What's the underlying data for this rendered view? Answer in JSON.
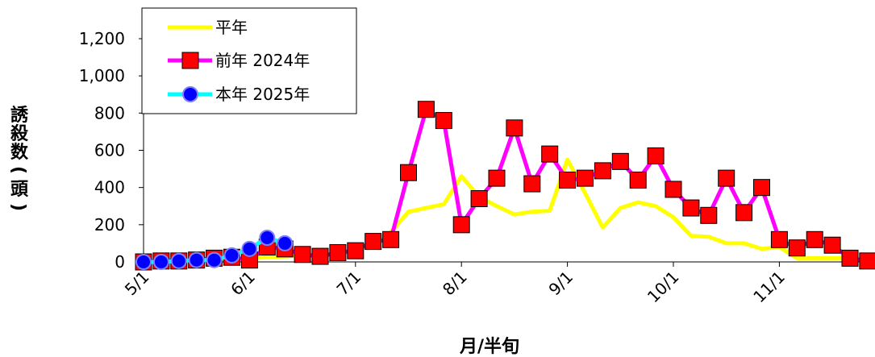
{
  "chart_data": {
    "type": "line",
    "xlabel": "月/半旬",
    "ylabel": "誘殺数(頭)",
    "ylim": [
      0,
      1200
    ],
    "yticks": [
      "0",
      "200",
      "400",
      "600",
      "800",
      "1,000",
      "1,200"
    ],
    "xticks": [
      "5/1",
      "6/1",
      "7/1",
      "8/1",
      "9/1",
      "10/1",
      "11/1"
    ],
    "grid": false,
    "legend_position": "top-left",
    "series": [
      {
        "name": "平年",
        "color": "#ffff00",
        "marker": "none",
        "values": [
          5,
          5,
          8,
          10,
          12,
          15,
          20,
          25,
          30,
          35,
          40,
          45,
          60,
          110,
          160,
          270,
          290,
          310,
          460,
          350,
          300,
          255,
          270,
          275,
          550,
          370,
          185,
          290,
          320,
          300,
          240,
          140,
          135,
          100,
          100,
          70,
          80,
          20,
          20,
          20,
          20,
          5
        ]
      },
      {
        "name": "前年 2024年",
        "color": "#ff00ff",
        "marker": "square",
        "marker_color": "#ff0000",
        "values": [
          0,
          5,
          5,
          10,
          20,
          25,
          10,
          80,
          70,
          40,
          30,
          50,
          60,
          110,
          120,
          480,
          820,
          760,
          200,
          340,
          450,
          720,
          420,
          580,
          440,
          450,
          490,
          540,
          440,
          570,
          390,
          290,
          250,
          450,
          265,
          400,
          120,
          75,
          120,
          90,
          20,
          5
        ]
      },
      {
        "name": "本年 2025年",
        "color": "#00ffff",
        "marker": "circle",
        "marker_color": "#0000ff",
        "values": [
          0,
          0,
          5,
          10,
          10,
          35,
          70,
          130,
          100
        ]
      }
    ]
  }
}
